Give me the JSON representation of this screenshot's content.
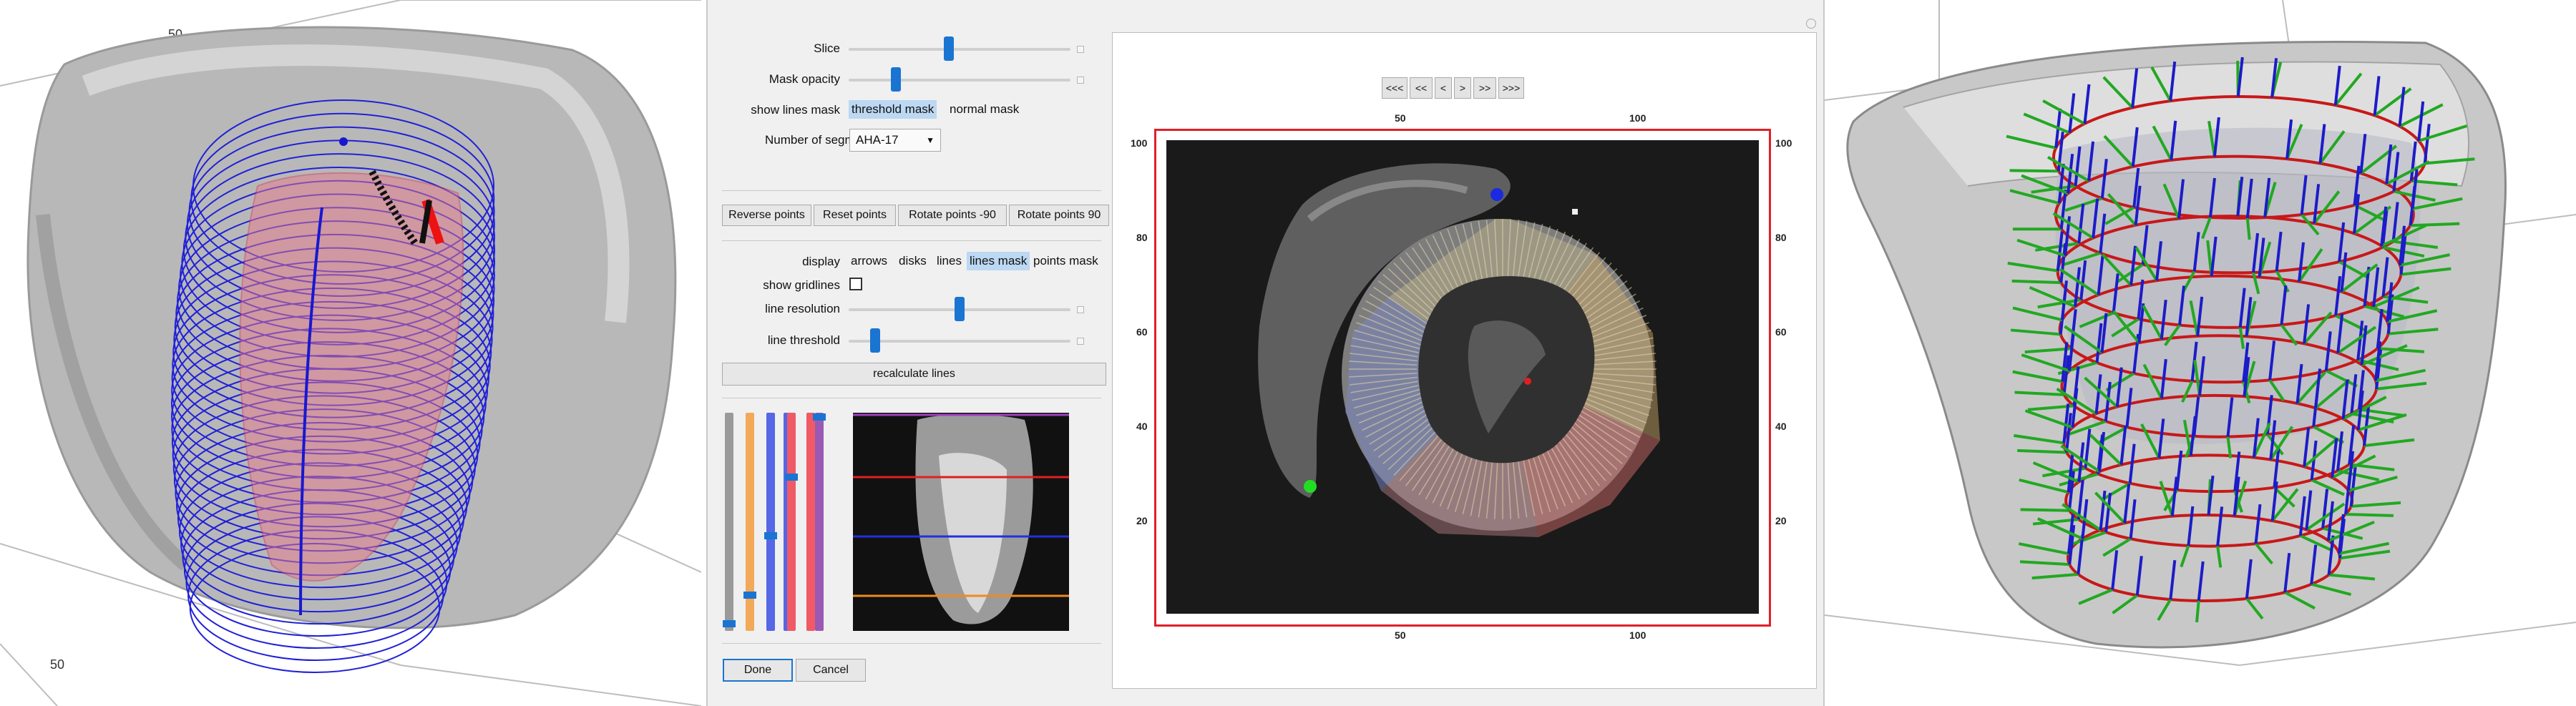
{
  "left_view": {
    "tick_top": "50",
    "tick_bottom": "50"
  },
  "right_view": {},
  "panel": {
    "controls": {
      "slice_label": "Slice",
      "slice_value": 0.45,
      "mask_opacity_label": "Mask opacity",
      "mask_opacity_value": 0.2,
      "show_lines_mask_label": "show lines mask",
      "show_lines_mask_options": [
        "threshold mask",
        "normal mask"
      ],
      "show_lines_mask_selected": "threshold mask",
      "segments_label": "Number of segments",
      "segments_value": "AHA-17",
      "point_buttons": [
        "Reverse points",
        "Reset points",
        "Rotate points -90",
        "Rotate points 90"
      ],
      "display_label": "display",
      "display_options": [
        "arrows",
        "disks",
        "lines",
        "lines mask",
        "points mask"
      ],
      "display_selected": "lines mask",
      "show_gridlines_label": "show gridlines",
      "show_gridlines_checked": false,
      "line_resolution_label": "line resolution",
      "line_resolution_value": 0.5,
      "line_threshold_label": "line threshold",
      "line_threshold_value": 0.1,
      "recalculate_label": "recalculate lines",
      "done_label": "Done",
      "cancel_label": "Cancel"
    },
    "viewer": {
      "nav_buttons": [
        "<<<",
        "<<",
        "<",
        ">",
        ">>",
        ">>>"
      ],
      "x_ticks": [
        "50",
        "100"
      ],
      "y_ticks": [
        "100",
        "80",
        "60",
        "40",
        "20"
      ]
    }
  },
  "colors": {
    "accent": "#1a74d2",
    "frame": "#e0202a",
    "slider_gray": "#9a9a9a",
    "slider_orange": "#f3a95a",
    "slider_blue": "#5566e6",
    "slider_red": "#ef5a66",
    "slider_purple": "#9a5ab4"
  }
}
